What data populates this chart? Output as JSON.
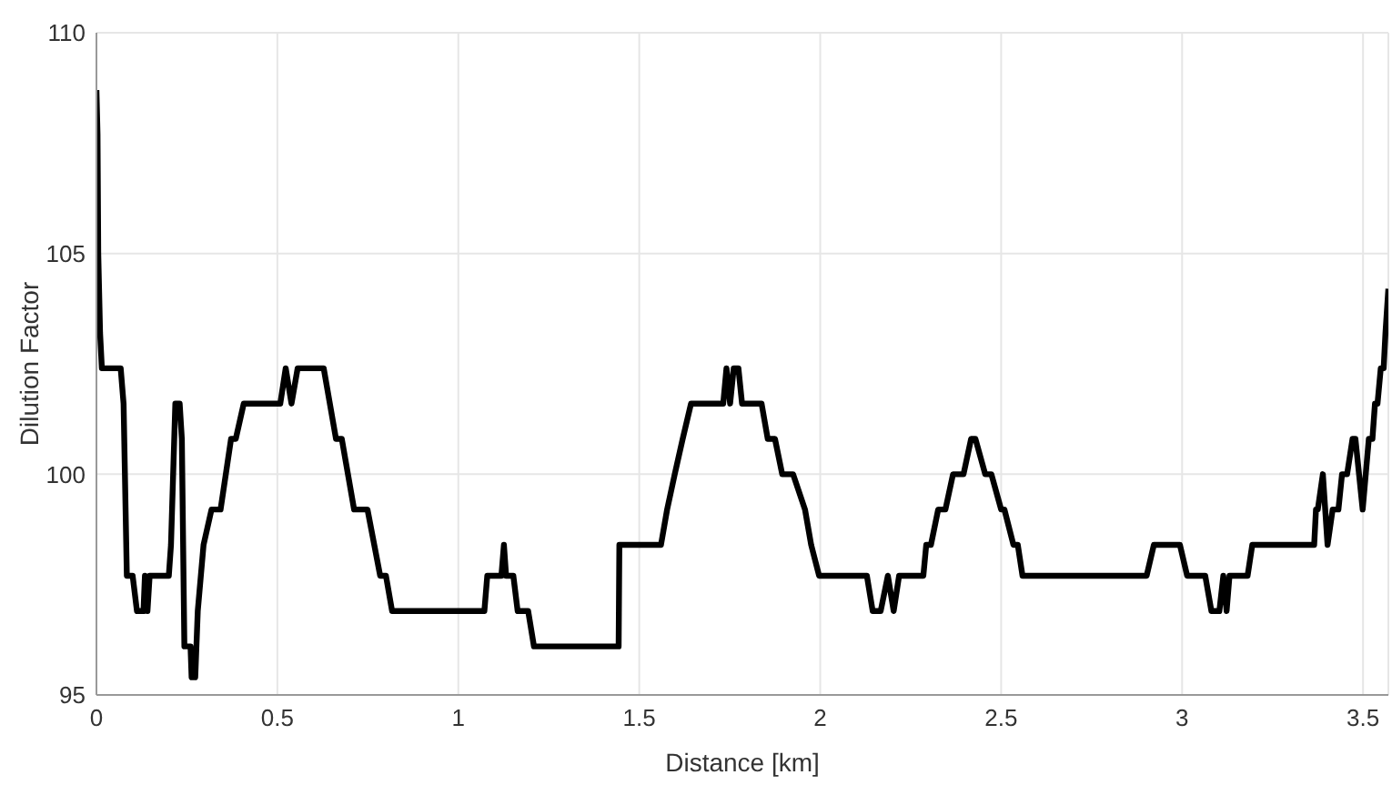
{
  "chart_data": {
    "type": "line",
    "xlabel": "Distance [km]",
    "ylabel": "Dilution Factor",
    "xlim": [
      0,
      3.57
    ],
    "xticks": [
      0,
      0.5,
      1,
      1.5,
      2,
      2.5,
      3,
      3.5
    ],
    "ylim": [
      95,
      110
    ],
    "yticks": [
      95,
      100,
      105,
      110
    ],
    "grid": true,
    "legend": false,
    "marker": "none",
    "line_style": "solid",
    "series": [
      {
        "color": "#000000",
        "x": [
          0,
          0.003,
          0.005,
          0.01,
          0.015,
          0.067,
          0.075,
          0.084,
          0.1,
          0.112,
          0.13,
          0.134,
          0.141,
          0.147,
          0.2,
          0.206,
          0.218,
          0.23,
          0.236,
          0.243,
          0.26,
          0.263,
          0.273,
          0.28,
          0.296,
          0.318,
          0.343,
          0.372,
          0.385,
          0.407,
          0.508,
          0.523,
          0.539,
          0.556,
          0.628,
          0.662,
          0.678,
          0.712,
          0.749,
          0.784,
          0.8,
          0.817,
          1.072,
          1.08,
          1.119,
          1.126,
          1.132,
          1.152,
          1.164,
          1.193,
          1.209,
          1.443,
          1.445,
          1.56,
          1.577,
          1.598,
          1.62,
          1.643,
          1.732,
          1.741,
          1.751,
          1.761,
          1.774,
          1.784,
          1.838,
          1.855,
          1.875,
          1.895,
          1.925,
          1.958,
          1.975,
          1.997,
          2.129,
          2.145,
          2.167,
          2.187,
          2.203,
          2.218,
          2.285,
          2.293,
          2.306,
          2.326,
          2.346,
          2.367,
          2.396,
          2.417,
          2.429,
          2.456,
          2.473,
          2.5,
          2.509,
          2.534,
          2.546,
          2.559,
          2.902,
          2.922,
          2.994,
          3.014,
          3.064,
          3.081,
          3.103,
          3.114,
          3.123,
          3.131,
          3.181,
          3.194,
          3.365,
          3.37,
          3.375,
          3.389,
          3.402,
          3.416,
          3.432,
          3.442,
          3.456,
          3.471,
          3.479,
          3.489,
          3.499,
          3.516,
          3.526,
          3.533,
          3.54,
          3.549,
          3.557,
          3.562,
          3.57
        ],
        "values": [
          108.7,
          107.7,
          105,
          103.2,
          102.4,
          102.4,
          101.6,
          97.7,
          97.7,
          96.9,
          96.9,
          97.7,
          96.9,
          97.7,
          97.7,
          98.4,
          101.6,
          101.6,
          100.8,
          96.1,
          96.1,
          95.4,
          95.4,
          96.9,
          98.4,
          99.2,
          99.2,
          100.8,
          100.8,
          101.6,
          101.6,
          102.4,
          101.6,
          102.4,
          102.4,
          100.8,
          100.8,
          99.2,
          99.2,
          97.7,
          97.7,
          96.9,
          96.9,
          97.7,
          97.7,
          98.4,
          97.7,
          97.7,
          96.9,
          96.9,
          96.1,
          96.1,
          98.4,
          98.4,
          99.2,
          100,
          100.8,
          101.6,
          101.6,
          102.4,
          101.6,
          102.4,
          102.4,
          101.6,
          101.6,
          100.8,
          100.8,
          100,
          100,
          99.2,
          98.4,
          97.7,
          97.7,
          96.9,
          96.9,
          97.7,
          96.9,
          97.7,
          97.7,
          98.4,
          98.4,
          99.2,
          99.2,
          100,
          100,
          100.8,
          100.8,
          100,
          100,
          99.2,
          99.2,
          98.4,
          98.4,
          97.7,
          97.7,
          98.4,
          98.4,
          97.7,
          97.7,
          96.9,
          96.9,
          97.7,
          96.9,
          97.7,
          97.7,
          98.4,
          98.4,
          99.2,
          99.2,
          100,
          98.4,
          99.2,
          99.2,
          100,
          100,
          100.8,
          100.8,
          100,
          99.2,
          100.8,
          100.8,
          101.6,
          101.6,
          102.4,
          102.4,
          103.2,
          104.2
        ]
      }
    ]
  }
}
